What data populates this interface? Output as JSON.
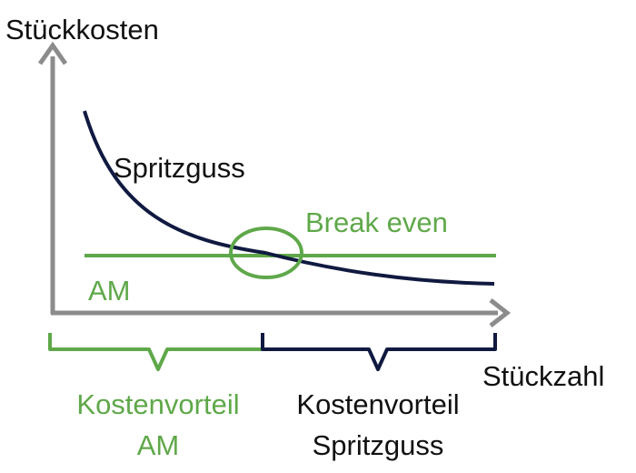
{
  "labels": {
    "y_axis": "Stückkosten",
    "x_axis": "Stückzahl",
    "spritzguss_curve": "Spritzguss",
    "am_line": "AM",
    "break_even": "Break even",
    "advantage_am_line1": "Kostenvorteil",
    "advantage_am_line2": "AM",
    "advantage_sg_line1": "Kostenvorteil",
    "advantage_sg_line2": "Spritzguss"
  },
  "colors": {
    "axis": "#8c8c8c",
    "spritzguss": "#101a40",
    "am": "#5fa84a",
    "text_dark": "#111111"
  }
}
